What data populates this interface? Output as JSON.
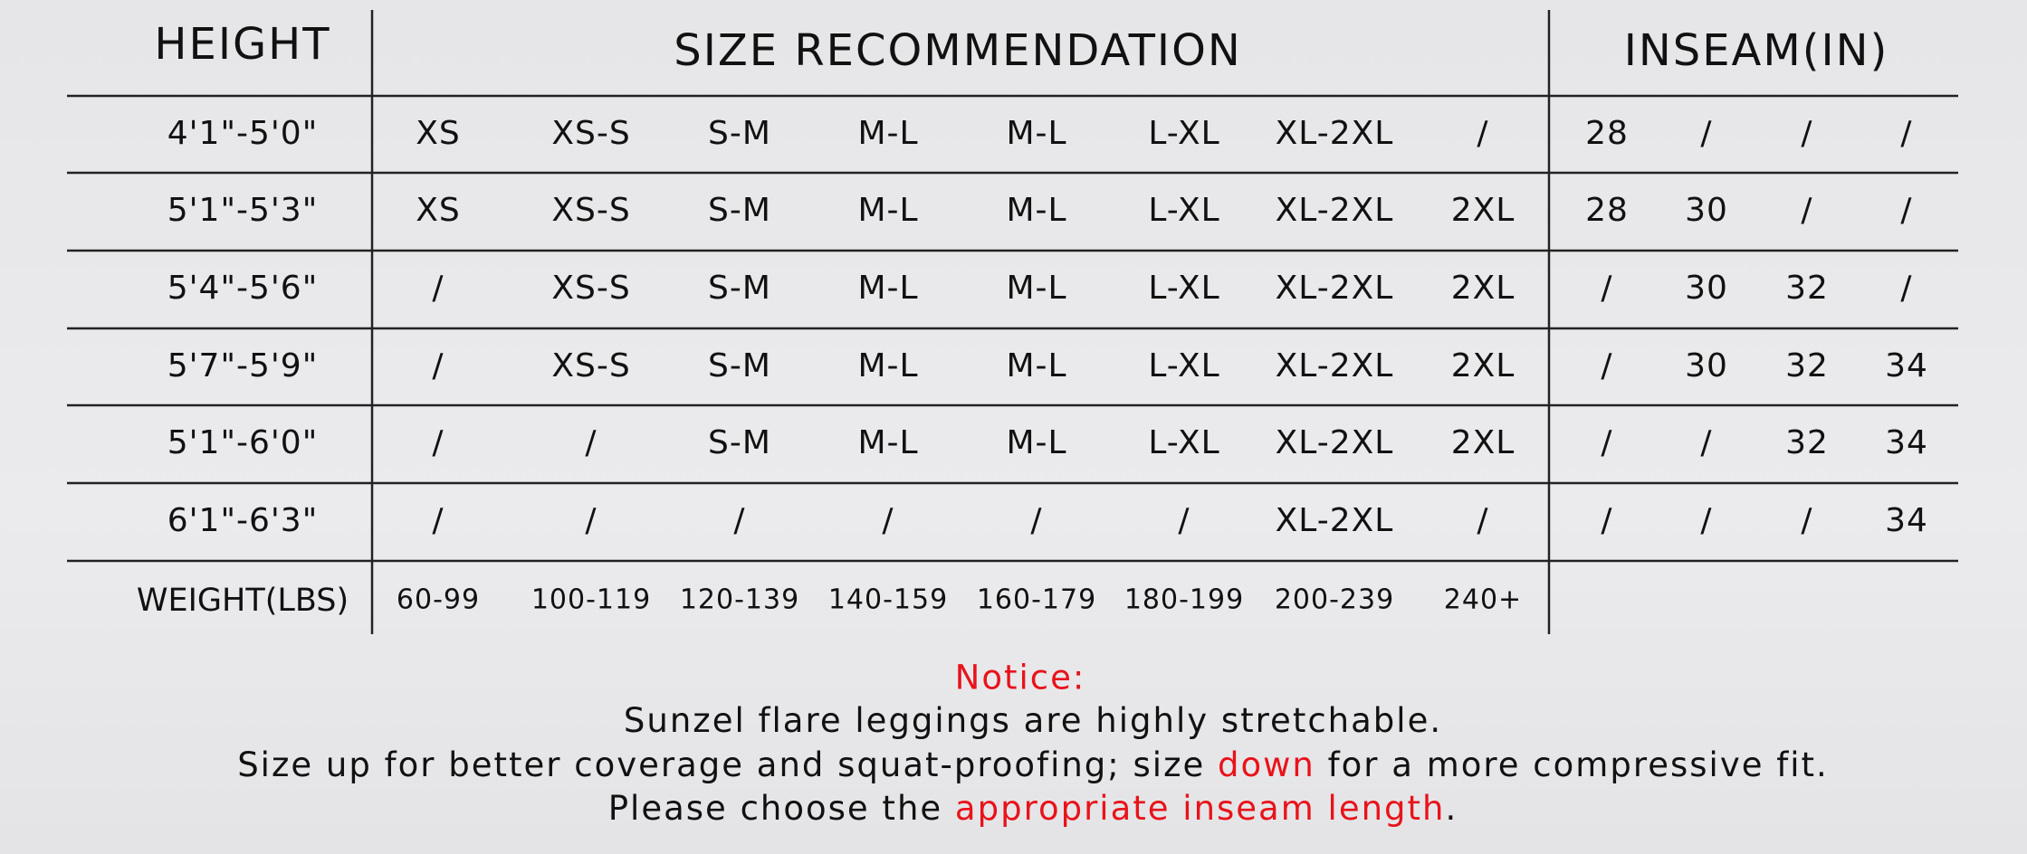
{
  "header": {
    "height": "HEIGHT",
    "size": "SIZE RECOMMENDATION",
    "inseam": "INSEAM(IN)"
  },
  "rows": [
    {
      "height": "4'1\"-5'0\"",
      "sizes": [
        "XS",
        "XS-S",
        "S-M",
        "M-L",
        "M-L",
        "L-XL",
        "XL-2XL",
        "/"
      ],
      "inseams": [
        "28",
        "/",
        "/",
        "/"
      ]
    },
    {
      "height": "5'1\"-5'3\"",
      "sizes": [
        "XS",
        "XS-S",
        "S-M",
        "M-L",
        "M-L",
        "L-XL",
        "XL-2XL",
        "2XL"
      ],
      "inseams": [
        "28",
        "30",
        "/",
        "/"
      ]
    },
    {
      "height": "5'4\"-5'6\"",
      "sizes": [
        "/",
        "XS-S",
        "S-M",
        "M-L",
        "M-L",
        "L-XL",
        "XL-2XL",
        "2XL"
      ],
      "inseams": [
        "/",
        "30",
        "32",
        "/"
      ]
    },
    {
      "height": "5'7\"-5'9\"",
      "sizes": [
        "/",
        "XS-S",
        "S-M",
        "M-L",
        "M-L",
        "L-XL",
        "XL-2XL",
        "2XL"
      ],
      "inseams": [
        "/",
        "30",
        "32",
        "34"
      ]
    },
    {
      "height": "5'1\"-6'0\"",
      "sizes": [
        "/",
        "/",
        "S-M",
        "M-L",
        "M-L",
        "L-XL",
        "XL-2XL",
        "2XL"
      ],
      "inseams": [
        "/",
        "/",
        "32",
        "34"
      ]
    },
    {
      "height": "6'1\"-6'3\"",
      "sizes": [
        "/",
        "/",
        "/",
        "/",
        "/",
        "/",
        "XL-2XL",
        "/"
      ],
      "inseams": [
        "/",
        "/",
        "/",
        "34"
      ]
    }
  ],
  "weight": {
    "label": "WEIGHT(LBS)",
    "values": [
      "60-99",
      "100-119",
      "120-139",
      "140-159",
      "160-179",
      "180-199",
      "200-239",
      "240+"
    ]
  },
  "notice": {
    "title": "Notice:",
    "lines": [
      [
        {
          "text": "Sunzel flare leggings are highly stretchable.",
          "highlight": false
        }
      ],
      [
        {
          "text": "Size up for better coverage and squat-proofing; size ",
          "highlight": false
        },
        {
          "text": "down",
          "highlight": true
        },
        {
          "text": " for a more compressive fit.",
          "highlight": false
        }
      ],
      [
        {
          "text": "Please choose the ",
          "highlight": false
        },
        {
          "text": "appropriate inseam length",
          "highlight": true
        },
        {
          "text": ".",
          "highlight": false
        }
      ]
    ]
  }
}
